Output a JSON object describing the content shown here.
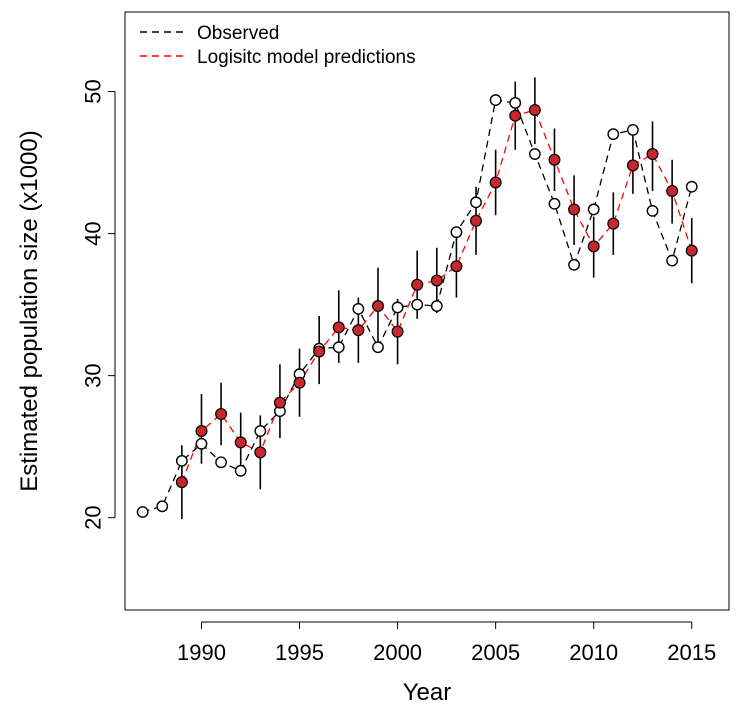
{
  "chart_data": {
    "type": "line",
    "title": "",
    "xlabel": "Year",
    "ylabel": "Estimated population size (x1000)",
    "xlim": [
      1986.1,
      2016.9
    ],
    "ylim": [
      13.5,
      55.6
    ],
    "xticks": [
      1990,
      1995,
      2000,
      2005,
      2010,
      2015
    ],
    "yticks": [
      20,
      30,
      40,
      50
    ],
    "grid": false,
    "legend_position": "top-left",
    "series": [
      {
        "name": "Observed",
        "color": "#000000",
        "line_style": "dashed",
        "marker": "open-circle",
        "x": [
          1987,
          1988,
          1989,
          1990,
          1991,
          1992,
          1993,
          1994,
          1995,
          1996,
          1997,
          1998,
          1999,
          2000,
          2001,
          2002,
          2003,
          2004,
          2005,
          2006,
          2007,
          2008,
          2009,
          2010,
          2011,
          2012,
          2013,
          2014,
          2015
        ],
        "y": [
          20.4,
          20.8,
          24.0,
          25.2,
          23.9,
          23.3,
          26.1,
          27.5,
          30.1,
          31.9,
          32.0,
          34.7,
          32.0,
          34.8,
          35.0,
          34.9,
          40.1,
          42.2,
          49.4,
          49.2,
          45.6,
          42.1,
          37.8,
          41.7,
          47.0,
          47.3,
          41.6,
          38.1,
          43.3
        ]
      },
      {
        "name": "Logisitc model predictions",
        "color": "#ff0000",
        "line_style": "dashed",
        "marker": "filled-circle",
        "marker_fill": "#c8282d",
        "x": [
          1989,
          1990,
          1991,
          1992,
          1993,
          1994,
          1995,
          1996,
          1997,
          1998,
          1999,
          2000,
          2001,
          2002,
          2003,
          2004,
          2005,
          2006,
          2007,
          2008,
          2009,
          2010,
          2011,
          2012,
          2013,
          2014,
          2015
        ],
        "y": [
          22.5,
          26.1,
          27.3,
          25.3,
          24.6,
          28.1,
          29.5,
          31.7,
          33.4,
          33.2,
          34.9,
          33.1,
          36.4,
          36.7,
          37.7,
          40.9,
          43.6,
          48.3,
          48.7,
          45.2,
          41.7,
          39.1,
          40.7,
          44.8,
          45.6,
          43.0,
          38.8
        ],
        "lower": [
          19.9,
          23.8,
          25.1,
          23.2,
          22.0,
          25.6,
          27.1,
          29.4,
          30.9,
          30.9,
          32.1,
          30.8,
          34.0,
          34.4,
          35.5,
          38.5,
          41.3,
          45.9,
          46.3,
          43.0,
          39.2,
          36.9,
          38.5,
          42.8,
          43.0,
          40.7,
          36.5
        ],
        "upper": [
          25.1,
          28.7,
          29.5,
          27.4,
          27.2,
          30.8,
          31.9,
          34.2,
          36.0,
          35.5,
          37.6,
          35.4,
          38.8,
          39.0,
          39.9,
          43.3,
          45.9,
          50.7,
          51.0,
          47.4,
          44.1,
          41.2,
          42.9,
          46.9,
          47.9,
          45.2,
          41.1
        ]
      }
    ]
  }
}
